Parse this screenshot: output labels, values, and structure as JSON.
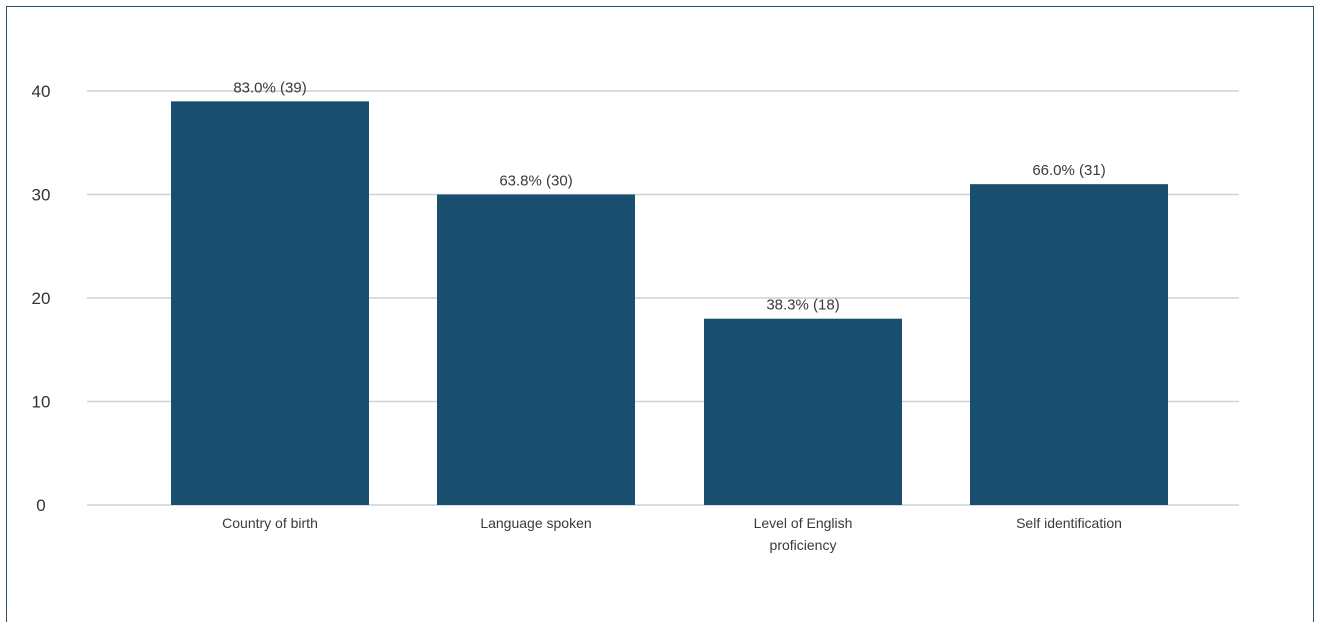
{
  "chart_data": {
    "type": "bar",
    "categories": [
      [
        "Country of birth"
      ],
      [
        "Language spoken"
      ],
      [
        "Level of English",
        "proficiency"
      ],
      [
        "Self identification"
      ]
    ],
    "values": [
      39,
      30,
      18,
      31
    ],
    "data_labels": [
      "83.0% (39)",
      "63.8% (30)",
      "38.3% (18)",
      "66.0% (31)"
    ],
    "yticks": [
      0,
      10,
      20,
      30,
      40
    ],
    "ylim": [
      0,
      40
    ],
    "grid": true,
    "colors": {
      "bar": "#1a4e6f",
      "grid": "#c9d3dc",
      "tick_label": "#333333",
      "category_label": "#3a3a3a",
      "data_label": "#3a3a3a"
    }
  }
}
